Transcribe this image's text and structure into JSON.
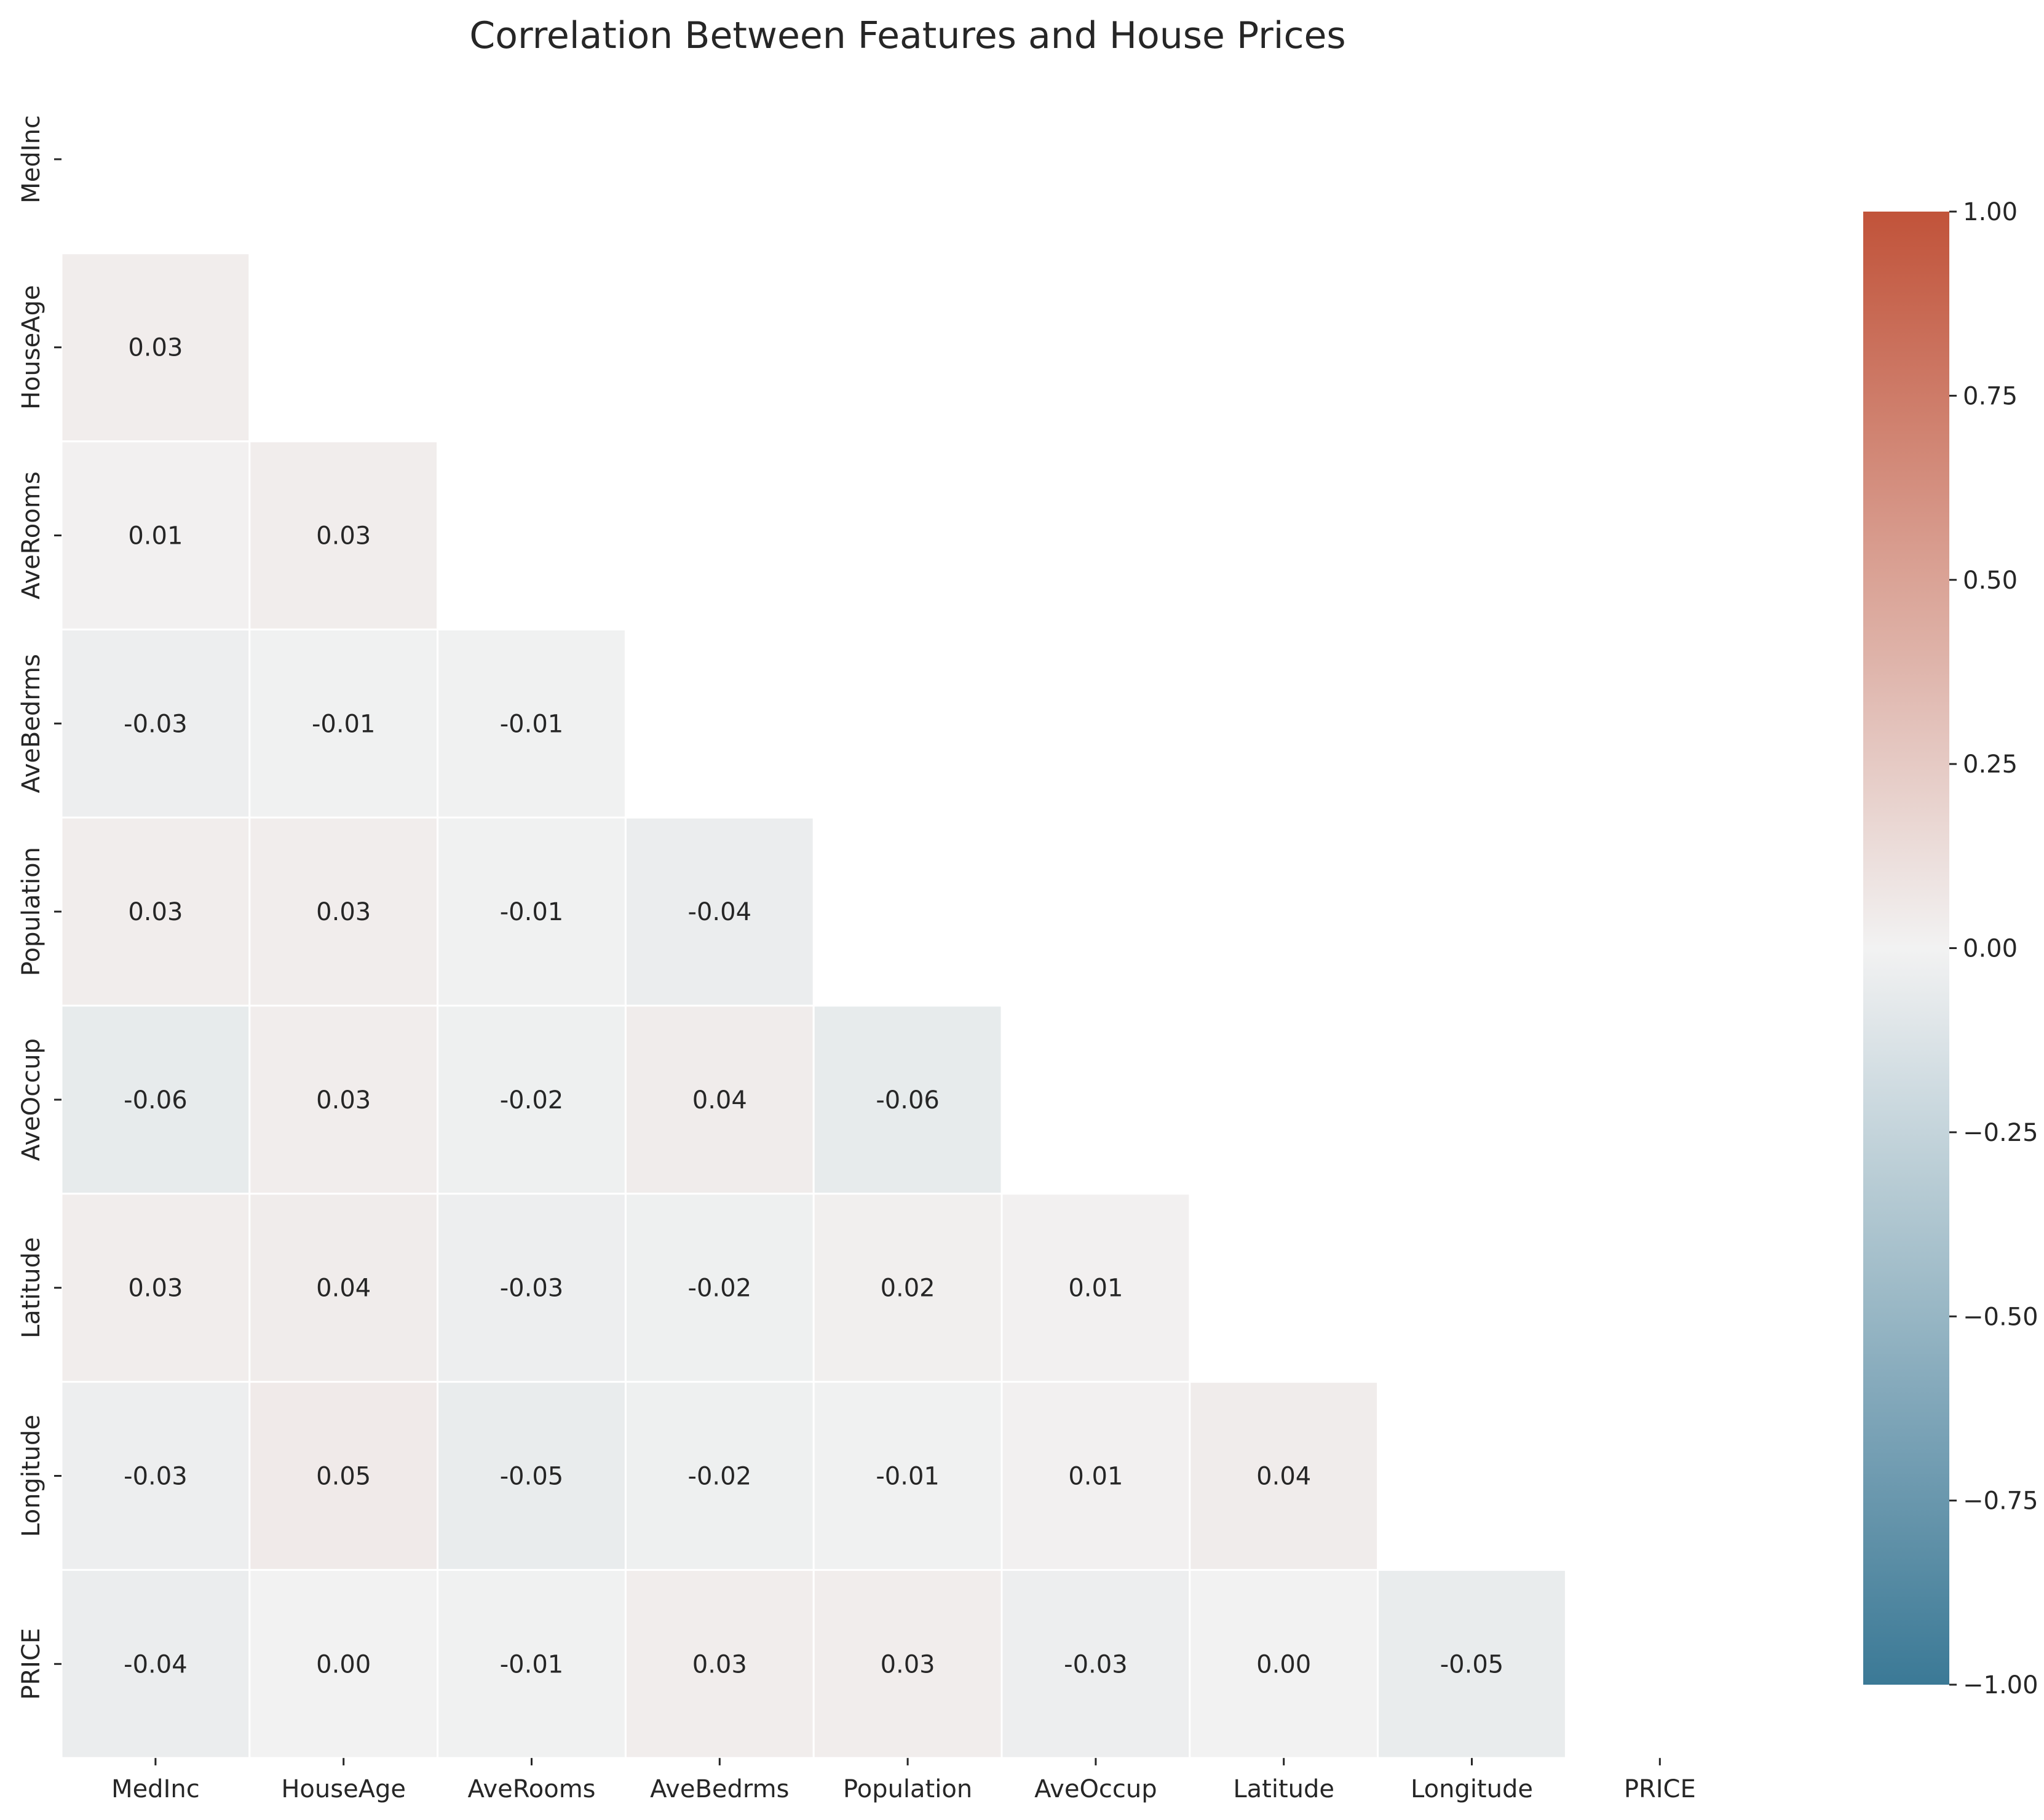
{
  "chart_data": {
    "type": "heatmap",
    "title": "Correlation Between Features and House Prices",
    "xlabel": "",
    "ylabel": "",
    "labels": [
      "MedInc",
      "HouseAge",
      "AveRooms",
      "AveBedrms",
      "Population",
      "AveOccup",
      "Latitude",
      "Longitude",
      "PRICE"
    ],
    "mask": "upper-triangle-including-diagonal",
    "matrix": [
      [
        null,
        null,
        null,
        null,
        null,
        null,
        null,
        null,
        null
      ],
      [
        0.03,
        null,
        null,
        null,
        null,
        null,
        null,
        null,
        null
      ],
      [
        0.01,
        0.03,
        null,
        null,
        null,
        null,
        null,
        null,
        null
      ],
      [
        -0.03,
        -0.01,
        -0.01,
        null,
        null,
        null,
        null,
        null,
        null
      ],
      [
        0.03,
        0.03,
        -0.01,
        -0.04,
        null,
        null,
        null,
        null,
        null
      ],
      [
        -0.06,
        0.03,
        -0.02,
        0.04,
        -0.06,
        null,
        null,
        null,
        null
      ],
      [
        0.03,
        0.04,
        -0.03,
        -0.02,
        0.02,
        0.01,
        null,
        null,
        null
      ],
      [
        -0.03,
        0.05,
        -0.05,
        -0.02,
        -0.01,
        0.01,
        0.04,
        null,
        null
      ],
      [
        -0.04,
        0.0,
        -0.01,
        0.03,
        0.03,
        -0.03,
        0.0,
        -0.05,
        null
      ]
    ],
    "annotations": [
      [
        "",
        "",
        "",
        "",
        "",
        "",
        "",
        "",
        ""
      ],
      [
        "0.03",
        "",
        "",
        "",
        "",
        "",
        "",
        "",
        ""
      ],
      [
        "0.01",
        "0.03",
        "",
        "",
        "",
        "",
        "",
        "",
        ""
      ],
      [
        "-0.03",
        "-0.01",
        "-0.01",
        "",
        "",
        "",
        "",
        "",
        ""
      ],
      [
        "0.03",
        "0.03",
        "-0.01",
        "-0.04",
        "",
        "",
        "",
        "",
        ""
      ],
      [
        "-0.06",
        "0.03",
        "-0.02",
        "0.04",
        "-0.06",
        "",
        "",
        "",
        ""
      ],
      [
        "0.03",
        "0.04",
        "-0.03",
        "-0.02",
        "0.02",
        "0.01",
        "",
        "",
        ""
      ],
      [
        "-0.03",
        "0.05",
        "-0.05",
        "-0.02",
        "-0.01",
        "0.01",
        "0.04",
        "",
        ""
      ],
      [
        "-0.04",
        "0.00",
        "-0.01",
        "0.03",
        "0.03",
        "-0.03",
        "0.00",
        "-0.05",
        ""
      ]
    ],
    "colorbar": {
      "vmin": -1.0,
      "vmax": 1.0,
      "ticks": [
        -1.0,
        -0.75,
        -0.5,
        -0.25,
        0.0,
        0.25,
        0.5,
        0.75,
        1.0
      ],
      "tick_labels": [
        "−1.00",
        "−0.75",
        "−0.50",
        "−0.25",
        "0.00",
        "0.25",
        "0.50",
        "0.75",
        "1.00"
      ],
      "colors": {
        "negative": "#3b7996",
        "center": "#f2f2f2",
        "positive": "#c1533a"
      }
    },
    "grid": false,
    "legend": "colorbar-right"
  }
}
